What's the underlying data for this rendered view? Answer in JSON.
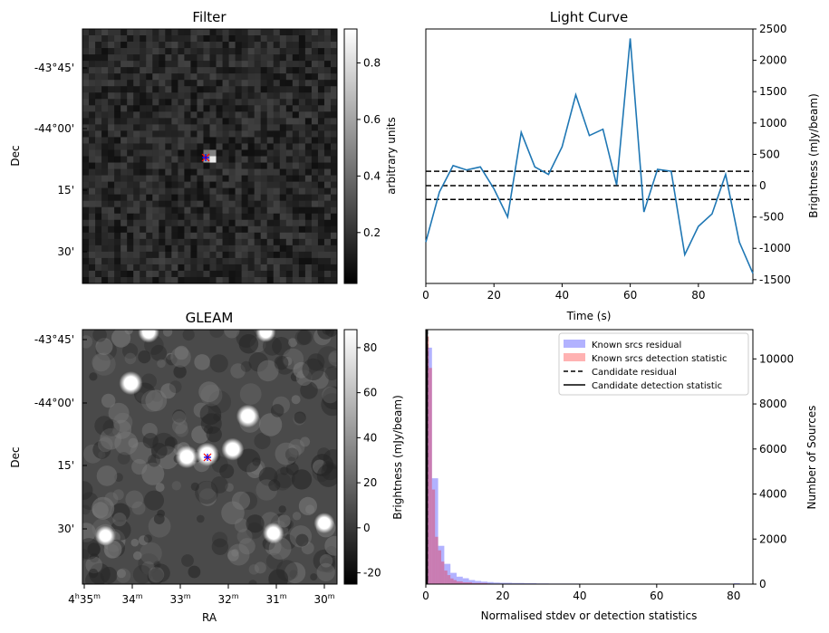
{
  "chart_data": [
    {
      "type": "heatmap",
      "panel": "filter",
      "title": "Filter",
      "ylabel": "Dec",
      "xlabel": "",
      "dec_ticks": [
        "-43°45'",
        "-44°00'",
        "15'",
        "30'"
      ],
      "colorbar": {
        "label": "arbitrary units",
        "ticks": [
          "0.2",
          "0.4",
          "0.6",
          "0.8"
        ],
        "range": [
          0.02,
          0.92
        ]
      },
      "grid_size": 40,
      "bright_pixels": [
        {
          "col": 19,
          "row": 20,
          "value": 0.62
        },
        {
          "col": 20,
          "row": 20,
          "value": 0.92
        },
        {
          "col": 19,
          "row": 19,
          "value": 0.45
        },
        {
          "col": 20,
          "row": 19,
          "value": 0.5
        }
      ],
      "markers": [
        {
          "symbol": "x",
          "color": "#ff0000"
        },
        {
          "symbol": "+",
          "color": "#0000ff"
        }
      ]
    },
    {
      "type": "line",
      "panel": "light_curve",
      "title": "Light Curve",
      "xlabel": "Time (s)",
      "ylabel": "Brightness (mJy/beam)",
      "xlim": [
        0,
        96
      ],
      "ylim": [
        -1560,
        2500
      ],
      "x_ticks": [
        0,
        20,
        40,
        60,
        80
      ],
      "y_ticks": [
        -1500,
        -1000,
        -500,
        0,
        500,
        1000,
        1500,
        2000,
        2500
      ],
      "series": [
        {
          "x": [
            0,
            4,
            8,
            12,
            16,
            20,
            24,
            28,
            32,
            36,
            40,
            44,
            48,
            52,
            56,
            60,
            64,
            68,
            72,
            76,
            80,
            84,
            88,
            92,
            96
          ],
          "y": [
            -900,
            -100,
            320,
            250,
            300,
            -50,
            -500,
            850,
            300,
            180,
            620,
            1450,
            800,
            900,
            10,
            2350,
            -420,
            260,
            230,
            -1100,
            -650,
            -450,
            180,
            -900,
            -1400
          ],
          "color": "#1f77b4"
        }
      ],
      "hlines": [
        230,
        0,
        -220
      ]
    },
    {
      "type": "heatmap",
      "panel": "gleam",
      "title": "GLEAM",
      "xlabel": "RA",
      "ylabel": "Dec",
      "dec_ticks": [
        "-43°45'",
        "-44°00'",
        "15'",
        "30'"
      ],
      "ra_ticks": [
        {
          "h": "4",
          "hs": "h",
          "m": "35",
          "ms": "m"
        },
        {
          "h": "",
          "hs": "",
          "m": "34",
          "ms": "m"
        },
        {
          "h": "",
          "hs": "",
          "m": "33",
          "ms": "m"
        },
        {
          "h": "",
          "hs": "",
          "m": "32",
          "ms": "m"
        },
        {
          "h": "",
          "hs": "",
          "m": "31",
          "ms": "m"
        },
        {
          "h": "",
          "hs": "",
          "m": "30",
          "ms": "m"
        }
      ],
      "colorbar": {
        "label": "Brightness (mJy/beam)",
        "ticks": [
          "80",
          "60",
          "40",
          "20",
          "0",
          "-20"
        ],
        "range": [
          -25,
          88
        ]
      },
      "sources": [
        {
          "ra_frac": 0.19,
          "dec_frac": 0.21,
          "brightness": 88
        },
        {
          "ra_frac": 0.65,
          "dec_frac": 0.34,
          "brightness": 85
        },
        {
          "ra_frac": 0.49,
          "dec_frac": 0.49,
          "brightness": 88
        },
        {
          "ra_frac": 0.41,
          "dec_frac": 0.5,
          "brightness": 82
        },
        {
          "ra_frac": 0.59,
          "dec_frac": 0.47,
          "brightness": 80
        },
        {
          "ra_frac": 0.26,
          "dec_frac": 0.01,
          "brightness": 70
        },
        {
          "ra_frac": 0.72,
          "dec_frac": 0.01,
          "brightness": 60
        },
        {
          "ra_frac": 0.09,
          "dec_frac": 0.81,
          "brightness": 60
        },
        {
          "ra_frac": 0.75,
          "dec_frac": 0.8,
          "brightness": 70
        },
        {
          "ra_frac": 0.95,
          "dec_frac": 0.76,
          "brightness": 65
        }
      ],
      "markers": [
        {
          "symbol": "x",
          "color": "#ff0000"
        },
        {
          "symbol": "+",
          "color": "#0000ff"
        }
      ]
    },
    {
      "type": "bar",
      "panel": "histogram",
      "xlabel": "Normalised stdev or detection statistics",
      "ylabel": "Number of Sources",
      "xlim": [
        0,
        85
      ],
      "ylim": [
        0,
        11300
      ],
      "x_ticks": [
        0,
        20,
        40,
        60,
        80
      ],
      "y_ticks": [
        0,
        2000,
        4000,
        6000,
        8000,
        10000
      ],
      "legend": [
        "Known srcs residual",
        "Known srcs detection statistic",
        "Candidate residual",
        "Candidate detection statistic"
      ],
      "legend_loc": "upper right",
      "series": [
        {
          "name": "Known srcs residual",
          "color": "#0000ff",
          "alpha": 0.3,
          "bin_width": 1.6,
          "bins_start": [
            0,
            1.6,
            3.2,
            4.8,
            6.4,
            8.0,
            9.6,
            11.2,
            12.8,
            14.4,
            16.0,
            17.6,
            19.2,
            22.4,
            25.6,
            28.8,
            32.0,
            40.0,
            48.0,
            56.0,
            64.0,
            80.0
          ],
          "counts": [
            10500,
            4700,
            1700,
            900,
            500,
            330,
            260,
            180,
            140,
            110,
            90,
            70,
            60,
            50,
            40,
            30,
            25,
            20,
            15,
            10,
            8,
            40
          ]
        },
        {
          "name": "Known srcs detection statistic",
          "color": "#ff0000",
          "alpha": 0.3,
          "bin_width": 0.8,
          "bins_start": [
            0,
            0.8,
            1.6,
            2.4,
            3.2,
            4.0,
            4.8,
            5.6,
            6.4,
            7.2,
            8.0,
            9.6,
            12.0,
            16.0
          ],
          "counts": [
            11000,
            9600,
            4200,
            2100,
            1500,
            1000,
            600,
            400,
            250,
            180,
            120,
            80,
            50,
            30
          ]
        }
      ],
      "vlines": [
        {
          "name": "Candidate residual",
          "x": 0.3,
          "style": "dashed"
        },
        {
          "name": "Candidate detection statistic",
          "x": 0.3,
          "style": "solid"
        }
      ]
    }
  ]
}
